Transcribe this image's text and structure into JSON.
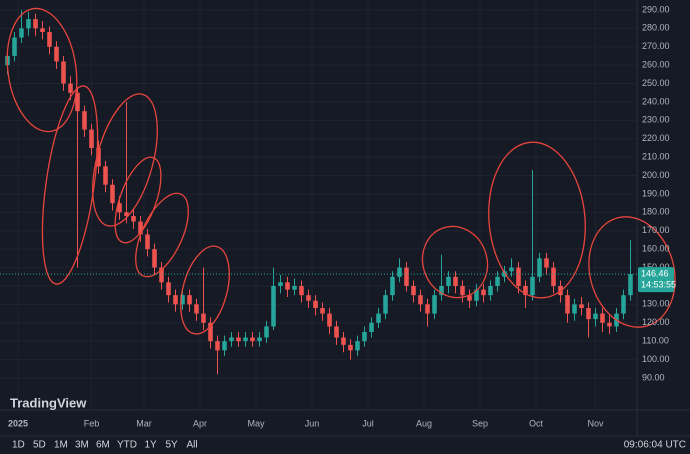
{
  "chart_data": {
    "type": "candlestick",
    "xticks": [
      {
        "value": 1.5,
        "label": "2025"
      },
      {
        "value": 12,
        "label": "Feb"
      },
      {
        "value": 19.5,
        "label": "Mar"
      },
      {
        "value": 27.5,
        "label": "Apr"
      },
      {
        "value": 35.5,
        "label": "May"
      },
      {
        "value": 43.5,
        "label": "Jun"
      },
      {
        "value": 51.5,
        "label": "Jul"
      },
      {
        "value": 59.5,
        "label": "Aug"
      },
      {
        "value": 67.5,
        "label": "Sep"
      },
      {
        "value": 75.5,
        "label": "Oct"
      },
      {
        "value": 84,
        "label": "Nov"
      }
    ],
    "xlim": [
      -0.5,
      89.5
    ],
    "ylim": [
      72.6,
      295.4
    ],
    "yticks": [
      {
        "value": 90,
        "label": "90.00"
      },
      {
        "value": 100,
        "label": "100.00"
      },
      {
        "value": 110,
        "label": "110.00"
      },
      {
        "value": 120,
        "label": "120.00"
      },
      {
        "value": 130,
        "label": "130.00"
      },
      {
        "value": 140,
        "label": "140.00"
      },
      {
        "value": 150,
        "label": "150.00"
      },
      {
        "value": 160,
        "label": "160.00"
      },
      {
        "value": 170,
        "label": "170.00"
      },
      {
        "value": 180,
        "label": "180.00"
      },
      {
        "value": 190,
        "label": "190.00"
      },
      {
        "value": 200,
        "label": "200.00"
      },
      {
        "value": 210,
        "label": "210.00"
      },
      {
        "value": 220,
        "label": "220.00"
      },
      {
        "value": 230,
        "label": "230.00"
      },
      {
        "value": 240,
        "label": "240.00"
      },
      {
        "value": 250,
        "label": "250.00"
      },
      {
        "value": 260,
        "label": "260.00"
      },
      {
        "value": 270,
        "label": "270.00"
      },
      {
        "value": 280,
        "label": "280.00"
      },
      {
        "value": 290,
        "label": "290.00"
      }
    ],
    "grid": true,
    "up_color": "#26a69a",
    "down_color": "#ef5350",
    "open": [
      260,
      265,
      275,
      280,
      285,
      280,
      278,
      270,
      262,
      250,
      245,
      235,
      225,
      215,
      205,
      195,
      185,
      180,
      178,
      175,
      168,
      160,
      150,
      142,
      135,
      130,
      135,
      130,
      125,
      120,
      110,
      105,
      110,
      112,
      110,
      112,
      110,
      112,
      118,
      140,
      142,
      138,
      140,
      135,
      132,
      128,
      125,
      118,
      112,
      108,
      105,
      110,
      115,
      120,
      125,
      135,
      145,
      150,
      140,
      135,
      130,
      125,
      135,
      140,
      145,
      140,
      135,
      132,
      138,
      135,
      140,
      145,
      148,
      150,
      140,
      135,
      145,
      155,
      150,
      140,
      135,
      125,
      130,
      128,
      122,
      125,
      120,
      118,
      125,
      135
    ],
    "high": [
      268,
      278,
      290,
      289,
      288,
      284,
      281,
      273,
      265,
      254,
      248,
      238,
      228,
      219,
      208,
      198,
      189,
      240,
      182,
      178,
      171,
      163,
      153,
      145,
      138,
      138,
      138,
      133,
      150,
      123,
      113,
      113,
      115,
      115,
      115,
      115,
      115,
      121,
      150,
      146,
      145,
      144,
      143,
      138,
      135,
      131,
      128,
      121,
      115,
      111,
      113,
      118,
      123,
      128,
      138,
      148,
      155,
      153,
      143,
      138,
      133,
      138,
      157,
      148,
      148,
      143,
      138,
      141,
      141,
      143,
      148,
      151,
      155,
      153,
      143,
      203,
      158,
      158,
      153,
      143,
      138,
      133,
      134,
      131,
      128,
      128,
      124,
      128,
      138,
      165
    ],
    "low": [
      255,
      262,
      272,
      276,
      276,
      274,
      266,
      258,
      246,
      241,
      150,
      221,
      211,
      201,
      191,
      181,
      176,
      174,
      171,
      164,
      156,
      146,
      138,
      131,
      126,
      127,
      126,
      121,
      116,
      106,
      92,
      102,
      107,
      107,
      107,
      107,
      107,
      109,
      116,
      136,
      134,
      135,
      131,
      128,
      124,
      121,
      114,
      108,
      104,
      100,
      102,
      107,
      112,
      117,
      122,
      132,
      142,
      137,
      131,
      126,
      118,
      122,
      132,
      136,
      136,
      131,
      128,
      129,
      131,
      132,
      137,
      142,
      145,
      136,
      128,
      132,
      142,
      146,
      136,
      131,
      120,
      121,
      124,
      112,
      118,
      115,
      114,
      115,
      122,
      132
    ],
    "close": [
      265,
      275,
      280,
      285,
      280,
      278,
      270,
      262,
      250,
      245,
      235,
      225,
      215,
      205,
      195,
      185,
      180,
      178,
      175,
      168,
      160,
      150,
      142,
      135,
      130,
      135,
      130,
      125,
      120,
      110,
      105,
      110,
      112,
      110,
      112,
      110,
      112,
      118,
      140,
      142,
      138,
      140,
      135,
      132,
      128,
      125,
      118,
      112,
      108,
      105,
      110,
      115,
      120,
      125,
      135,
      145,
      150,
      140,
      135,
      130,
      125,
      135,
      140,
      145,
      140,
      135,
      132,
      138,
      135,
      140,
      145,
      148,
      150,
      140,
      135,
      145,
      155,
      150,
      140,
      135,
      125,
      130,
      128,
      122,
      125,
      120,
      118,
      125,
      135,
      146.46
    ],
    "countdown": "14:53:55"
  },
  "logo": "TradingView",
  "toolbar": {
    "ranges": [
      "1D",
      "5D",
      "1M",
      "3M",
      "6M",
      "YTD",
      "1Y",
      "5Y",
      "All"
    ],
    "time": "09:06:04 UTC"
  }
}
